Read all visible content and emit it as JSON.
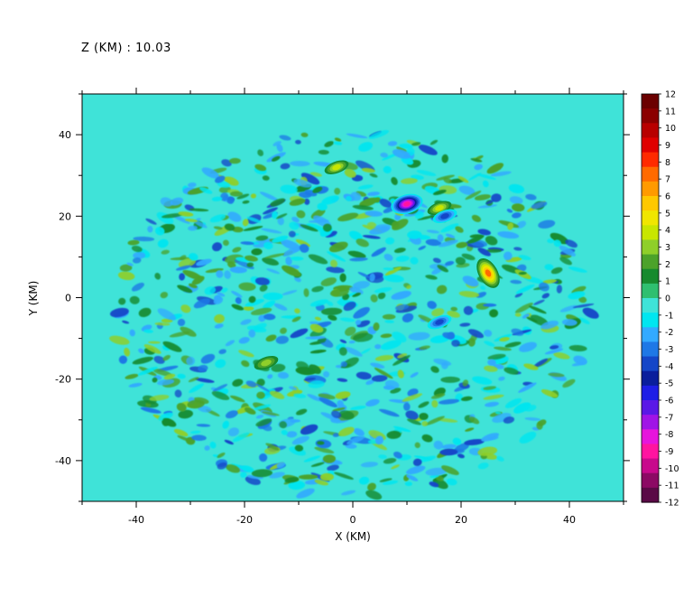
{
  "chart_data": {
    "type": "heatmap",
    "title": "Z (KM) : 10.03",
    "xlabel": "X (KM)",
    "ylabel": "Y (KM)",
    "xlim": [
      -50,
      50
    ],
    "ylim": [
      -50,
      50
    ],
    "x_ticks": [
      -40,
      -20,
      0,
      20,
      40
    ],
    "y_ticks": [
      -40,
      -20,
      0,
      20,
      40
    ],
    "colorbar": {
      "min": -12,
      "max": 12,
      "levels": [
        12,
        11,
        10,
        9,
        8,
        7,
        6,
        5,
        4,
        3,
        2,
        1,
        0,
        -1,
        -2,
        -3,
        -4,
        -5,
        -6,
        -7,
        -8,
        -9,
        -10,
        -11,
        -12
      ],
      "colors": [
        "#6b0000",
        "#8b0000",
        "#b80000",
        "#e00000",
        "#ff2a00",
        "#ff6a00",
        "#ff9a00",
        "#ffc800",
        "#f0e600",
        "#c8e600",
        "#8fcf2a",
        "#4ca22a",
        "#178a2e",
        "#2fbf70",
        "#3fe3d8",
        "#00e6f0",
        "#33aaff",
        "#1e78e6",
        "#1446c8",
        "#0a1e9c",
        "#1e1ee6",
        "#5a18e6",
        "#a014e6",
        "#e614dc",
        "#ff14a0",
        "#c80a8c",
        "#8c0a64",
        "#5a0a46"
      ]
    },
    "background_value": 0,
    "features": [
      {
        "label": "positive maximum (~7 to 8)",
        "x": 25,
        "y": 6,
        "value": 7
      },
      {
        "label": "negative minimum (~-9)",
        "x": 10,
        "y": 23,
        "value": -9
      },
      {
        "label": "positive (~4 to 5)",
        "x": 16,
        "y": 22,
        "value": 4
      },
      {
        "label": "positive (~4)",
        "x": -3,
        "y": 32,
        "value": 4
      },
      {
        "label": "negative (~-4 to -5)",
        "x": 17,
        "y": 20,
        "value": -4
      },
      {
        "label": "positive (~3)",
        "x": -16,
        "y": -16,
        "value": 3
      },
      {
        "label": "negative (~-4)",
        "x": 16,
        "y": -6,
        "value": -4
      }
    ]
  }
}
